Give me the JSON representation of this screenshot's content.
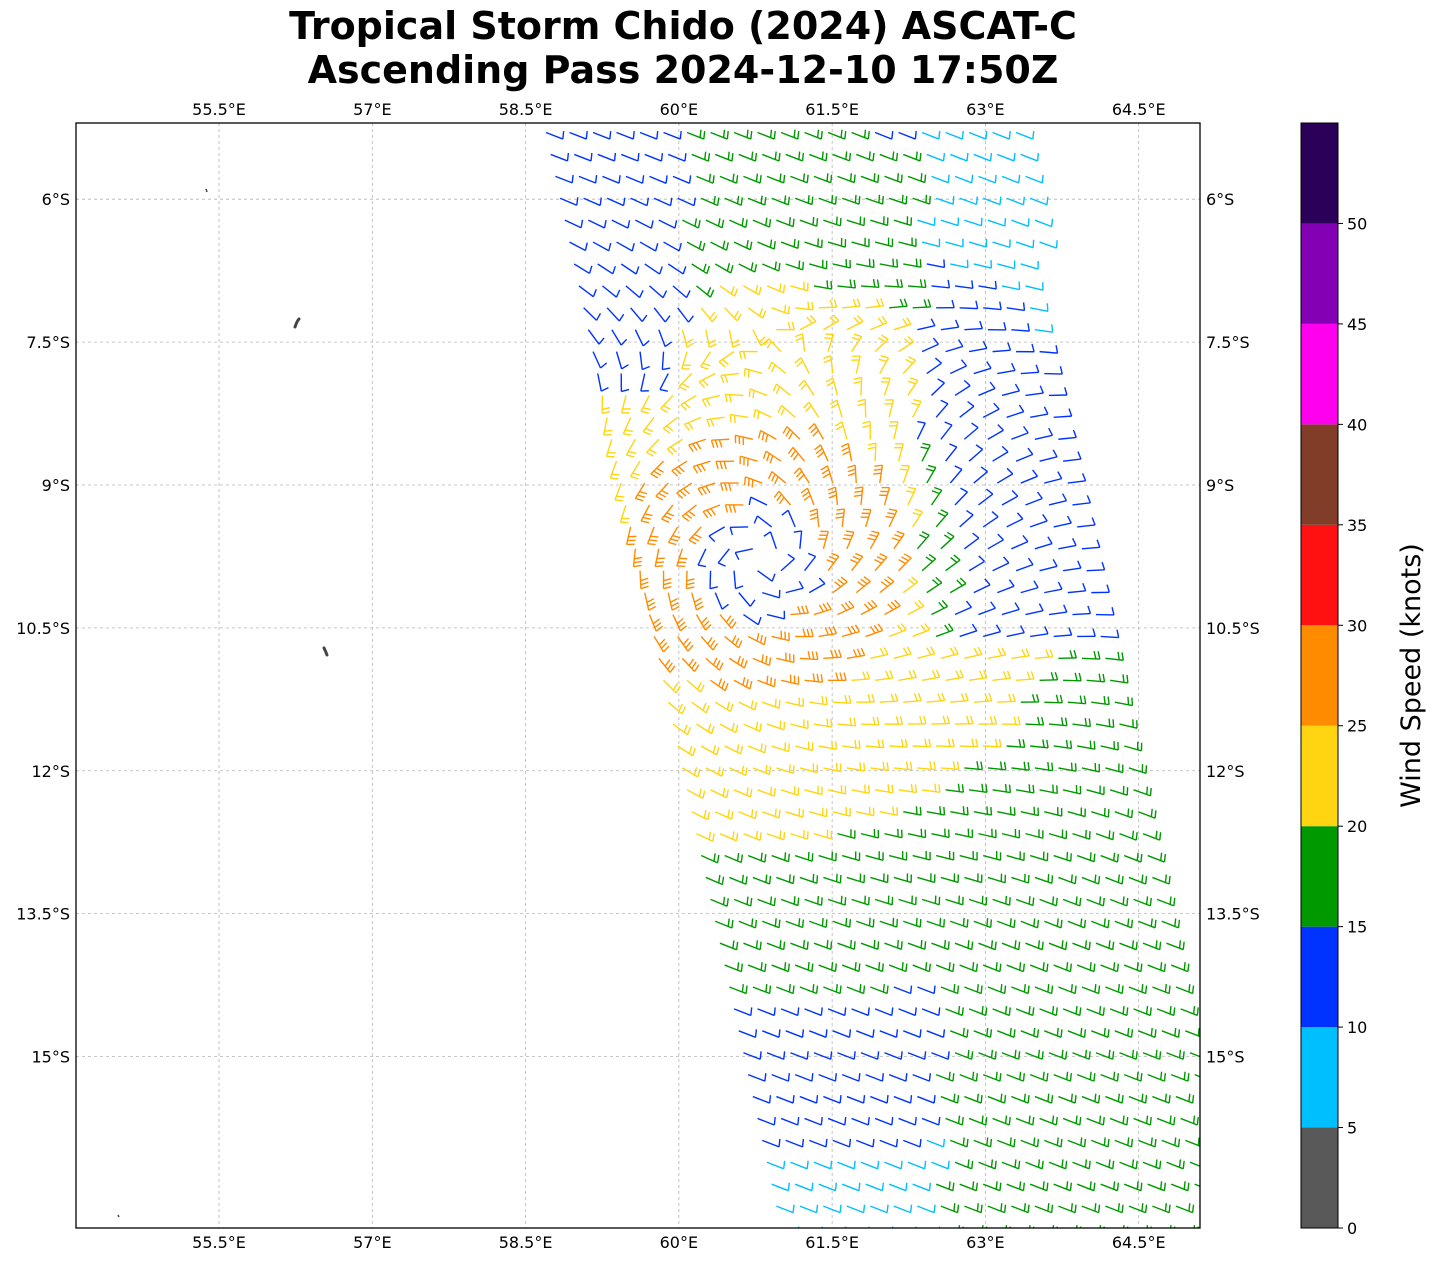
{
  "title": {
    "line1": "Tropical Storm Chido (2024) ASCAT-C",
    "line2": "Ascending Pass 2024-12-10 17:50Z"
  },
  "map": {
    "lon_range": [
      54.1,
      65.1
    ],
    "lat_range": [
      -16.8,
      -5.2
    ],
    "lon_ticks": [
      55.5,
      57,
      58.5,
      60,
      61.5,
      63,
      64.5
    ],
    "lon_tick_labels": [
      "55.5°E",
      "57°E",
      "58.5°E",
      "60°E",
      "61.5°E",
      "63°E",
      "64.5°E"
    ],
    "lat_ticks": [
      -6,
      -7.5,
      -9,
      -10.5,
      -12,
      -13.5,
      -15
    ],
    "lat_tick_labels": [
      "6°S",
      "7.5°S",
      "9°S",
      "10.5°S",
      "12°S",
      "13.5°S",
      "15°S"
    ],
    "gridlines": true,
    "storm_center": {
      "lon": 60.8,
      "lat": -9.8
    }
  },
  "colorbar": {
    "label": "Wind Speed (knots)",
    "tick_values": [
      0,
      5,
      10,
      15,
      20,
      25,
      30,
      35,
      40,
      45,
      50
    ],
    "tick_labels": [
      "0",
      "5",
      "10",
      "15",
      "20",
      "25",
      "30",
      "35",
      "40",
      "45",
      "50"
    ],
    "bins": [
      {
        "min": 0,
        "max": 5,
        "color": "#595959"
      },
      {
        "min": 5,
        "max": 10,
        "color": "#00bfff"
      },
      {
        "min": 10,
        "max": 15,
        "color": "#0033ff"
      },
      {
        "min": 15,
        "max": 20,
        "color": "#009900"
      },
      {
        "min": 20,
        "max": 25,
        "color": "#ffd511"
      },
      {
        "min": 25,
        "max": 30,
        "color": "#ff8c00"
      },
      {
        "min": 30,
        "max": 35,
        "color": "#ff1111"
      },
      {
        "min": 35,
        "max": 40,
        "color": "#823d29"
      },
      {
        "min": 40,
        "max": 45,
        "color": "#ff00ee"
      },
      {
        "min": 45,
        "max": 50,
        "color": "#8300b4"
      },
      {
        "min": 50,
        "max": 55,
        "color": "#2b0059"
      }
    ]
  }
}
